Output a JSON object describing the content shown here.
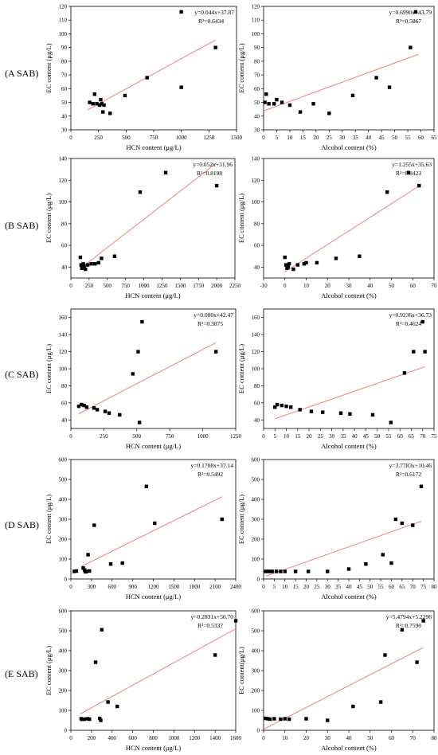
{
  "row_labels": [
    "(A SAB)",
    "(B SAB)",
    "(C SAB)",
    "(D SAB)",
    "(E SAB)"
  ],
  "colors": {
    "points": "#000000",
    "fit_line": "#e8837f",
    "axis": "#000000"
  },
  "chart_data": [
    {
      "type": "scatter",
      "panel": "A-left",
      "xlabel": "HCN content (μg/L)",
      "ylabel": "EC content (μg/L)",
      "xlim": [
        0,
        1500
      ],
      "ylim": [
        30,
        120
      ],
      "xticks": [
        0,
        250,
        500,
        750,
        1000,
        1250,
        1500
      ],
      "yticks": [
        30,
        40,
        50,
        60,
        70,
        80,
        90,
        100,
        110,
        120
      ],
      "equation": "y=0.044x+37.87",
      "r2": "R²=0.6434",
      "fit": {
        "slope": 0.044,
        "intercept": 37.87,
        "x_range": [
          150,
          1310
        ]
      },
      "points": [
        [
          170,
          50
        ],
        [
          200,
          49
        ],
        [
          215,
          56
        ],
        [
          235,
          49
        ],
        [
          260,
          48
        ],
        [
          270,
          52
        ],
        [
          280,
          49
        ],
        [
          290,
          43
        ],
        [
          300,
          48
        ],
        [
          355,
          42
        ],
        [
          490,
          55
        ],
        [
          690,
          68
        ],
        [
          1000,
          116
        ],
        [
          1000,
          61
        ],
        [
          1310,
          90
        ]
      ]
    },
    {
      "type": "scatter",
      "panel": "A-right",
      "xlabel": "Alcohol content (%)",
      "ylabel": "EC content (μg/L)",
      "xlim": [
        0,
        65
      ],
      "ylim": [
        30,
        120
      ],
      "xticks": [
        0,
        5,
        10,
        15,
        20,
        25,
        30,
        35,
        40,
        45,
        50,
        55,
        60,
        65
      ],
      "yticks": [
        30,
        40,
        50,
        60,
        70,
        80,
        90,
        100,
        110,
        120
      ],
      "equation": "y=0.6990x+43.79",
      "r2": "R²=0.5867",
      "fit": {
        "slope": 0.699,
        "intercept": 43.79,
        "x_range": [
          0,
          59
        ]
      },
      "points": [
        [
          0.5,
          50
        ],
        [
          1,
          56
        ],
        [
          2,
          49
        ],
        [
          4,
          49
        ],
        [
          5,
          52
        ],
        [
          7,
          50
        ],
        [
          10,
          48
        ],
        [
          14,
          43
        ],
        [
          19,
          49
        ],
        [
          25,
          42
        ],
        [
          34,
          55
        ],
        [
          43,
          68
        ],
        [
          48,
          61
        ],
        [
          56,
          90
        ],
        [
          58,
          116
        ]
      ]
    },
    {
      "type": "scatter",
      "panel": "B-left",
      "xlabel": "HCN content (μg/L)",
      "ylabel": "EC content (μg/L)",
      "xlim": [
        0,
        2250
      ],
      "ylim": [
        30,
        140
      ],
      "xticks": [
        0,
        250,
        500,
        750,
        1000,
        1250,
        1500,
        1750,
        2000,
        2250
      ],
      "yticks": [
        40,
        60,
        80,
        100,
        120,
        140
      ],
      "equation": "y=0.052x+31.96",
      "r2": "R²=0.8198",
      "fit": {
        "slope": 0.052,
        "intercept": 31.96,
        "x_range": [
          130,
          2000
        ]
      },
      "points": [
        [
          130,
          49
        ],
        [
          140,
          42
        ],
        [
          150,
          39
        ],
        [
          170,
          43
        ],
        [
          180,
          41
        ],
        [
          200,
          38
        ],
        [
          230,
          42
        ],
        [
          280,
          43
        ],
        [
          330,
          43
        ],
        [
          380,
          44
        ],
        [
          420,
          48
        ],
        [
          600,
          50
        ],
        [
          950,
          109
        ],
        [
          1300,
          127
        ],
        [
          2000,
          115
        ]
      ]
    },
    {
      "type": "scatter",
      "panel": "B-right",
      "xlabel": "Alcohol content (%)",
      "ylabel": "EC content (μg/L)",
      "xlim": [
        -10,
        70
      ],
      "ylim": [
        30,
        140
      ],
      "xticks": [
        -10,
        0,
        10,
        20,
        30,
        40,
        50,
        60,
        70
      ],
      "yticks": [
        40,
        60,
        80,
        100,
        120,
        140
      ],
      "equation": "y=1.255x+35.63",
      "r2": "R²=0.8423",
      "fit": {
        "slope": 1.255,
        "intercept": 35.63,
        "x_range": [
          0,
          63
        ]
      },
      "points": [
        [
          0,
          49
        ],
        [
          0.5,
          42
        ],
        [
          1,
          39
        ],
        [
          1.5,
          40
        ],
        [
          2,
          43
        ],
        [
          4,
          38
        ],
        [
          6,
          42
        ],
        [
          9,
          43
        ],
        [
          10,
          44
        ],
        [
          15,
          44
        ],
        [
          24,
          48
        ],
        [
          35,
          50
        ],
        [
          48,
          109
        ],
        [
          58,
          127
        ],
        [
          63,
          115
        ]
      ]
    },
    {
      "type": "scatter",
      "panel": "C-left",
      "xlabel": "HCN content (μg/L)",
      "ylabel": "EC content (μg/L)",
      "xlim": [
        0,
        1250
      ],
      "ylim": [
        30,
        170
      ],
      "xticks": [
        0,
        250,
        500,
        750,
        1000,
        1250
      ],
      "yticks": [
        40,
        60,
        80,
        100,
        120,
        140,
        160
      ],
      "equation": "y=0.080x+42.47",
      "r2": "R²=0.3875",
      "fit": {
        "slope": 0.08,
        "intercept": 42.47,
        "x_range": [
          60,
          1100
        ]
      },
      "points": [
        [
          60,
          56
        ],
        [
          80,
          58
        ],
        [
          100,
          57
        ],
        [
          120,
          55
        ],
        [
          175,
          54
        ],
        [
          200,
          52
        ],
        [
          260,
          50
        ],
        [
          290,
          48
        ],
        [
          370,
          46
        ],
        [
          470,
          94
        ],
        [
          510,
          120
        ],
        [
          520,
          37
        ],
        [
          540,
          155
        ],
        [
          1100,
          120
        ]
      ]
    },
    {
      "type": "scatter",
      "panel": "C-right",
      "xlabel": "Alcohol content (%)",
      "ylabel": "EC content (μg/L)",
      "xlim": [
        0,
        75
      ],
      "ylim": [
        30,
        170
      ],
      "xticks": [
        0,
        5,
        10,
        15,
        20,
        25,
        30,
        35,
        40,
        45,
        50,
        55,
        60,
        65,
        70,
        75
      ],
      "yticks": [
        40,
        60,
        80,
        100,
        120,
        140,
        160
      ],
      "equation": "y=0.9236x+36.73",
      "r2": "R²=0.4624",
      "fit": {
        "slope": 0.9236,
        "intercept": 36.73,
        "x_range": [
          5,
          71
        ]
      },
      "points": [
        [
          5,
          55
        ],
        [
          6,
          58
        ],
        [
          8,
          57
        ],
        [
          10,
          56
        ],
        [
          12,
          55
        ],
        [
          16,
          52
        ],
        [
          21,
          50
        ],
        [
          26,
          49
        ],
        [
          34,
          48
        ],
        [
          38,
          47
        ],
        [
          48,
          46
        ],
        [
          56,
          37
        ],
        [
          62,
          95
        ],
        [
          66,
          120
        ],
        [
          70,
          155
        ],
        [
          71,
          120
        ]
      ]
    },
    {
      "type": "scatter",
      "panel": "D-left",
      "xlabel": "HCN content (μg/L)",
      "ylabel": "EC content (μg/L)",
      "xlim": [
        0,
        2400
      ],
      "ylim": [
        0,
        600
      ],
      "xticks": [
        0,
        300,
        600,
        900,
        1200,
        1500,
        1800,
        2100,
        2400
      ],
      "yticks": [
        0,
        100,
        200,
        300,
        400,
        500,
        600
      ],
      "equation": "y=0.1708x+37.14",
      "r2": "R²=0.5492",
      "fit": {
        "slope": 0.1708,
        "intercept": 37.14,
        "x_range": [
          150,
          2200
        ]
      },
      "points": [
        [
          50,
          38
        ],
        [
          80,
          40
        ],
        [
          180,
          55
        ],
        [
          200,
          45
        ],
        [
          210,
          36
        ],
        [
          230,
          38
        ],
        [
          250,
          122
        ],
        [
          270,
          40
        ],
        [
          340,
          270
        ],
        [
          580,
          75
        ],
        [
          750,
          80
        ],
        [
          1100,
          465
        ],
        [
          1220,
          280
        ],
        [
          2200,
          300
        ]
      ]
    },
    {
      "type": "scatter",
      "panel": "D-right",
      "xlabel": "Alcohol content (%)",
      "ylabel": "EC content (μg/L)",
      "xlim": [
        0,
        80
      ],
      "ylim": [
        0,
        600
      ],
      "xticks": [
        0,
        5,
        10,
        15,
        20,
        25,
        30,
        35,
        40,
        45,
        50,
        55,
        60,
        65,
        70,
        75,
        80
      ],
      "yticks": [
        0,
        100,
        200,
        300,
        400,
        500,
        600
      ],
      "equation": "y=3.7783x+10.46",
      "r2": "R²=0.6172",
      "fit": {
        "slope": 3.7783,
        "intercept": 10.46,
        "x_range": [
          1,
          74
        ]
      },
      "points": [
        [
          1,
          38
        ],
        [
          2,
          38
        ],
        [
          3,
          38
        ],
        [
          4,
          38
        ],
        [
          6,
          38
        ],
        [
          8,
          38
        ],
        [
          10,
          38
        ],
        [
          15,
          38
        ],
        [
          21,
          38
        ],
        [
          30,
          38
        ],
        [
          40,
          50
        ],
        [
          48,
          75
        ],
        [
          56,
          122
        ],
        [
          60,
          80
        ],
        [
          62,
          300
        ],
        [
          65,
          280
        ],
        [
          70,
          270
        ],
        [
          74,
          465
        ]
      ]
    },
    {
      "type": "scatter",
      "panel": "E-left",
      "xlabel": "HCN content (μg/L)",
      "ylabel": "EC content (μg/L)",
      "xlim": [
        0,
        1600
      ],
      "ylim": [
        0,
        600
      ],
      "xticks": [
        0,
        200,
        400,
        600,
        800,
        1000,
        1200,
        1400,
        1600
      ],
      "yticks": [
        0,
        100,
        200,
        300,
        400,
        500,
        600
      ],
      "equation": "y=0.2831x+56.70",
      "r2": "R²=0.5337",
      "fit": {
        "slope": 0.2831,
        "intercept": 56.7,
        "x_range": [
          90,
          1600
        ]
      },
      "points": [
        [
          100,
          58
        ],
        [
          110,
          55
        ],
        [
          130,
          56
        ],
        [
          160,
          58
        ],
        [
          180,
          56
        ],
        [
          240,
          342
        ],
        [
          280,
          60
        ],
        [
          290,
          50
        ],
        [
          300,
          505
        ],
        [
          360,
          142
        ],
        [
          450,
          120
        ],
        [
          1400,
          378
        ],
        [
          1600,
          550
        ]
      ]
    },
    {
      "type": "scatter",
      "panel": "E-right",
      "xlabel": "Alcohol content (%)",
      "ylabel": "EC content(μg/L)",
      "xlim": [
        0,
        80
      ],
      "ylim": [
        0,
        600
      ],
      "xticks": [
        0,
        10,
        20,
        30,
        40,
        50,
        60,
        70,
        80
      ],
      "yticks": [
        0,
        100,
        200,
        300,
        400,
        500,
        600
      ],
      "equation": "y=5.4794x+5.2296",
      "r2": "R²=0.7590",
      "fit": {
        "slope": 5.4794,
        "intercept": 5.2296,
        "x_range": [
          0,
          75
        ]
      },
      "points": [
        [
          1,
          60
        ],
        [
          2,
          58
        ],
        [
          3,
          56
        ],
        [
          5,
          58
        ],
        [
          8,
          56
        ],
        [
          10,
          58
        ],
        [
          12,
          56
        ],
        [
          20,
          58
        ],
        [
          30,
          50
        ],
        [
          42,
          120
        ],
        [
          55,
          142
        ],
        [
          57,
          378
        ],
        [
          65,
          505
        ],
        [
          72,
          342
        ],
        [
          75,
          550
        ]
      ]
    }
  ]
}
